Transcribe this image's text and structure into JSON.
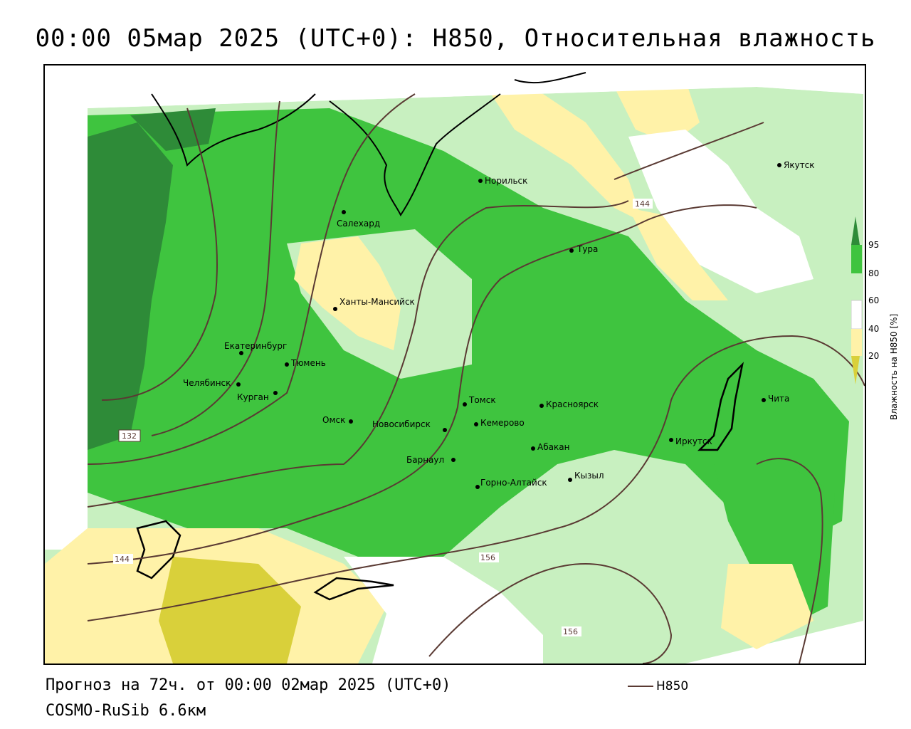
{
  "title": "00:00 05мар 2025 (UTC+0): H850, Относительная влажность",
  "footer": {
    "forecast": "Прогноз на 72ч. от 00:00 02мар 2025 (UTC+0)",
    "model": "COSMO-RuSib 6.6км",
    "line_legend": "H850"
  },
  "legend": {
    "title": "Влажность на H850 [%]",
    "levels": [
      "95",
      "80",
      "60",
      "40",
      "20"
    ],
    "colors": {
      "95": "#2e8b38",
      "80": "#3fc43f",
      "60": "#c8f0c0",
      "40": "#ffffff",
      "20": "#fff2a8",
      "0": "#d9d03a"
    }
  },
  "cities": [
    {
      "name": "Якутск"
    },
    {
      "name": "Норильск"
    },
    {
      "name": "Салехард"
    },
    {
      "name": "Тура"
    },
    {
      "name": "Ханты-Мансийск"
    },
    {
      "name": "Екатеринбург"
    },
    {
      "name": "Тюмень"
    },
    {
      "name": "Челябинск"
    },
    {
      "name": "Курган"
    },
    {
      "name": "Омск"
    },
    {
      "name": "Новосибирск"
    },
    {
      "name": "Томск"
    },
    {
      "name": "Кемерово"
    },
    {
      "name": "Красноярск"
    },
    {
      "name": "Барнаул"
    },
    {
      "name": "Абакан"
    },
    {
      "name": "Горно-Алтайск"
    },
    {
      "name": "Кызыл"
    },
    {
      "name": "Иркутск"
    },
    {
      "name": "Чита"
    }
  ],
  "contour_labels": [
    "144",
    "132",
    "144",
    "156",
    "156"
  ]
}
